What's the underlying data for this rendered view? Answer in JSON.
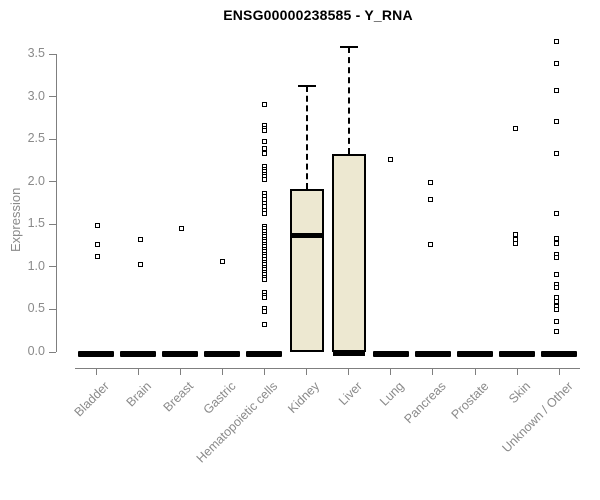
{
  "chart_data": {
    "type": "boxplot",
    "title": "ENSG00000238585 - Y_RNA",
    "ylabel": "Expression",
    "ylim": [
      0,
      3.5
    ],
    "yticks": [
      "0.0",
      "0.5",
      "1.0",
      "1.5",
      "2.0",
      "2.5",
      "3.0",
      "3.5"
    ],
    "grid": "off",
    "box_fill": "#EDE8D1",
    "axis_color": "#7f7f7f",
    "label_color": "#8a8a8a",
    "categories": [
      "Bladder",
      "Brain",
      "Breast",
      "Gastric",
      "Hematopoietic cells",
      "Kidney",
      "Liver",
      "Lung",
      "Pancreas",
      "Prostate",
      "Skin",
      "Unknown / Other"
    ],
    "series": [
      {
        "category": "Bladder",
        "q1": 0,
        "median": 0,
        "q3": 0,
        "whisker_high": 0,
        "outliers": [
          1.48,
          1.26,
          1.11
        ]
      },
      {
        "category": "Brain",
        "q1": 0,
        "median": 0,
        "q3": 0,
        "whisker_high": 0,
        "outliers": [
          1.31,
          1.02
        ]
      },
      {
        "category": "Breast",
        "q1": 0,
        "median": 0,
        "q3": 0,
        "whisker_high": 0,
        "outliers": [
          1.45
        ]
      },
      {
        "category": "Gastric",
        "q1": 0,
        "median": 0,
        "q3": 0,
        "whisker_high": 0,
        "outliers": [
          1.06
        ]
      },
      {
        "category": "Hematopoietic cells",
        "q1": 0,
        "median": 0,
        "q3": 0,
        "whisker_high": 0,
        "outliers": [
          2.9,
          2.65,
          2.62,
          2.59,
          2.47,
          2.39,
          2.32,
          2.17,
          2.14,
          2.11,
          2.08,
          2.05,
          2.02,
          1.86,
          1.82,
          1.78,
          1.74,
          1.7,
          1.66,
          1.62,
          1.47,
          1.44,
          1.41,
          1.38,
          1.35,
          1.32,
          1.29,
          1.26,
          1.23,
          1.2,
          1.17,
          1.14,
          1.11,
          1.08,
          1.05,
          1.02,
          0.99,
          0.96,
          0.93,
          0.9,
          0.87,
          0.84,
          0.69,
          0.66,
          0.63,
          0.5,
          0.47,
          0.32
        ]
      },
      {
        "category": "Kidney",
        "q1": 0,
        "median": 1.37,
        "q3": 1.91,
        "whisker_high": 3.13,
        "outliers": []
      },
      {
        "category": "Liver",
        "q1": 0,
        "median": 0,
        "q3": 2.32,
        "whisker_high": 3.58,
        "outliers": []
      },
      {
        "category": "Lung",
        "q1": 0,
        "median": 0,
        "q3": 0,
        "whisker_high": 0,
        "outliers": [
          2.26
        ]
      },
      {
        "category": "Pancreas",
        "q1": 0,
        "median": 0,
        "q3": 0,
        "whisker_high": 0,
        "outliers": [
          1.98,
          1.78,
          1.26
        ]
      },
      {
        "category": "Prostate",
        "q1": 0,
        "median": 0,
        "q3": 0,
        "whisker_high": 0,
        "outliers": []
      },
      {
        "category": "Skin",
        "q1": 0,
        "median": 0,
        "q3": 0,
        "whisker_high": 0,
        "outliers": [
          2.62,
          1.38,
          1.32,
          1.27
        ]
      },
      {
        "category": "Unknown / Other",
        "q1": 0,
        "median": 0,
        "q3": 0,
        "whisker_high": 0,
        "outliers": [
          3.64,
          3.38,
          3.06,
          2.7,
          2.32,
          1.62,
          1.33,
          1.27,
          1.14,
          1.1,
          0.91,
          0.79,
          0.75,
          0.63,
          0.59,
          0.53,
          0.49,
          0.35,
          0.23
        ]
      }
    ]
  }
}
